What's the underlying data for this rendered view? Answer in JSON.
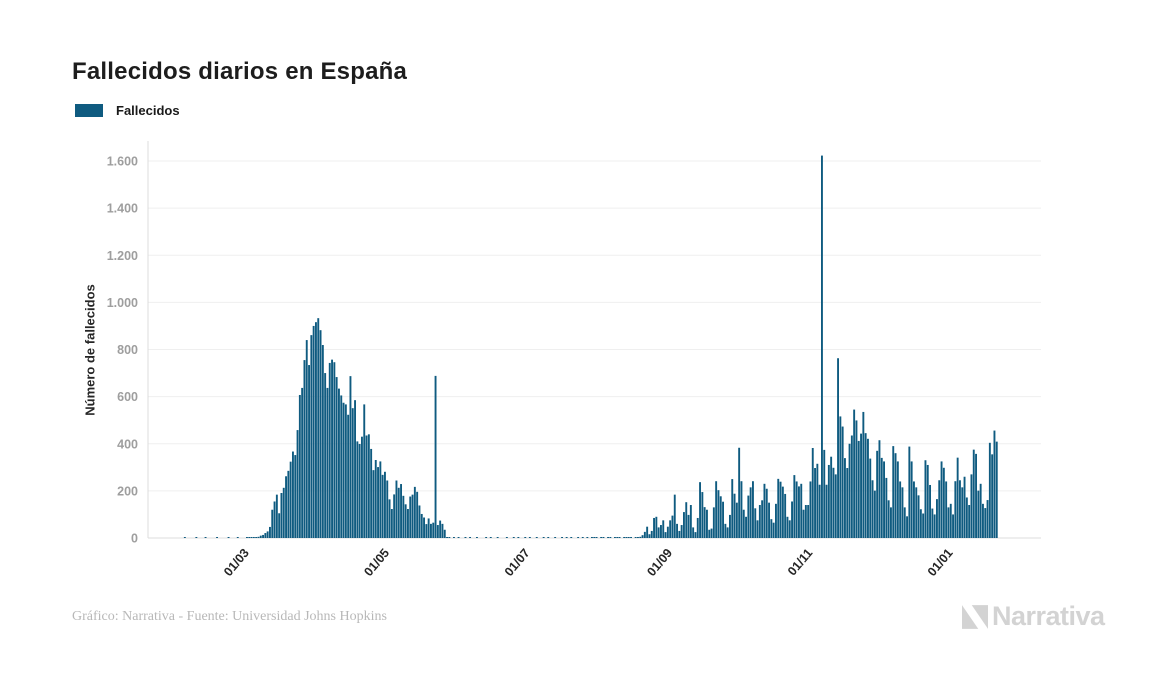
{
  "title": "Fallecidos diarios en España",
  "legend": {
    "items": [
      {
        "label": "Fallecidos",
        "color": "#0f5b80"
      }
    ]
  },
  "footer": {
    "credit": "Gráfico: Narrativa - Fuente: Universidad Johns Hopkins"
  },
  "brand": {
    "name": "Narrativa"
  },
  "colors": {
    "bar": "#0f5b80",
    "grid": "#efefef",
    "axis_line": "#dcdcdc",
    "y_tick_label": "#9e9e9e",
    "x_tick_label": "#262626",
    "title": "#1d1d1d",
    "footer": "#b8b8b8",
    "brand": "#d3d3d3"
  },
  "chart_data": {
    "type": "bar",
    "title": "Fallecidos diarios en España",
    "series_name": "Fallecidos",
    "xlabel": "",
    "ylabel": "Número de fallecidos",
    "ylim": [
      0,
      1600
    ],
    "grid": "horizontal",
    "legend_position": "top-left",
    "start_date": "2020-02-01",
    "frequency": "daily",
    "y_ticks": [
      {
        "value": 0,
        "label": "0"
      },
      {
        "value": 200,
        "label": "200"
      },
      {
        "value": 400,
        "label": "400"
      },
      {
        "value": 600,
        "label": "600"
      },
      {
        "value": 800,
        "label": "800"
      },
      {
        "value": 1000,
        "label": "1.000"
      },
      {
        "value": 1200,
        "label": "1.200"
      },
      {
        "value": 1400,
        "label": "1.400"
      },
      {
        "value": 1600,
        "label": "1.600"
      }
    ],
    "x_ticks": [
      {
        "index": 29,
        "label": "01/03"
      },
      {
        "index": 90,
        "label": "01/05"
      },
      {
        "index": 151,
        "label": "01/07"
      },
      {
        "index": 213,
        "label": "01/09"
      },
      {
        "index": 274,
        "label": "01/11"
      },
      {
        "index": 335,
        "label": "01/01"
      }
    ],
    "values": [
      0,
      0,
      0,
      1,
      0,
      0,
      0,
      0,
      1,
      0,
      0,
      0,
      1,
      0,
      0,
      0,
      0,
      1,
      0,
      0,
      0,
      0,
      1,
      0,
      0,
      0,
      1,
      0,
      0,
      0,
      1,
      2,
      1,
      3,
      2,
      5,
      10,
      13,
      21,
      28,
      47,
      120,
      155,
      184,
      105,
      191,
      213,
      262,
      285,
      324,
      367,
      352,
      458,
      607,
      637,
      755,
      840,
      734,
      861,
      900,
      916,
      933,
      882,
      819,
      700,
      637,
      743,
      757,
      746,
      683,
      634,
      605,
      574,
      567,
      523,
      687,
      551,
      585,
      410,
      399,
      430,
      567,
      435,
      440,
      378,
      288,
      331,
      301,
      325,
      268,
      281,
      244,
      164,
      123,
      185,
      244,
      213,
      229,
      179,
      143,
      123,
      176,
      184,
      217,
      196,
      138,
      102,
      87,
      59,
      83,
      60,
      65,
      688,
      55,
      74,
      60,
      35,
      2,
      1,
      0,
      2,
      0,
      1,
      0,
      0,
      2,
      0,
      1,
      0,
      0,
      1,
      0,
      0,
      0,
      1,
      0,
      2,
      0,
      0,
      1,
      0,
      0,
      0,
      1,
      0,
      0,
      2,
      0,
      1,
      0,
      0,
      2,
      0,
      1,
      0,
      0,
      3,
      0,
      0,
      2,
      0,
      1,
      0,
      0,
      2,
      0,
      0,
      3,
      0,
      1,
      0,
      2,
      0,
      0,
      3,
      0,
      2,
      0,
      4,
      0,
      1,
      3,
      2,
      0,
      3,
      1,
      0,
      4,
      2,
      0,
      3,
      1,
      2,
      0,
      3,
      2,
      4,
      1,
      0,
      3,
      2,
      5,
      12,
      26,
      48,
      16,
      30,
      85,
      90,
      45,
      55,
      75,
      25,
      48,
      75,
      95,
      184,
      60,
      30,
      55,
      110,
      152,
      98,
      140,
      45,
      25,
      85,
      237,
      195,
      131,
      120,
      35,
      40,
      130,
      241,
      203,
      177,
      154,
      60,
      45,
      98,
      250,
      188,
      150,
      383,
      241,
      120,
      90,
      180,
      215,
      241,
      126,
      75,
      140,
      160,
      230,
      209,
      150,
      80,
      65,
      145,
      251,
      239,
      218,
      187,
      90,
      75,
      155,
      267,
      240,
      219,
      230,
      120,
      140,
      140,
      240,
      382,
      297,
      315,
      226,
      1623,
      374,
      226,
      310,
      345,
      298,
      270,
      763,
      516,
      473,
      339,
      297,
      400,
      435,
      545,
      499,
      412,
      443,
      535,
      445,
      421,
      337,
      245,
      201,
      370,
      415,
      340,
      325,
      255,
      160,
      130,
      390,
      360,
      325,
      240,
      215,
      130,
      92,
      388,
      325,
      240,
      215,
      181,
      122,
      104,
      330,
      310,
      225,
      125,
      100,
      165,
      245,
      325,
      298,
      240,
      130,
      145,
      100,
      241,
      341,
      245,
      215,
      260,
      172,
      140,
      270,
      375,
      357,
      201,
      230,
      145,
      127,
      161,
      404,
      355,
      456,
      409
    ]
  }
}
